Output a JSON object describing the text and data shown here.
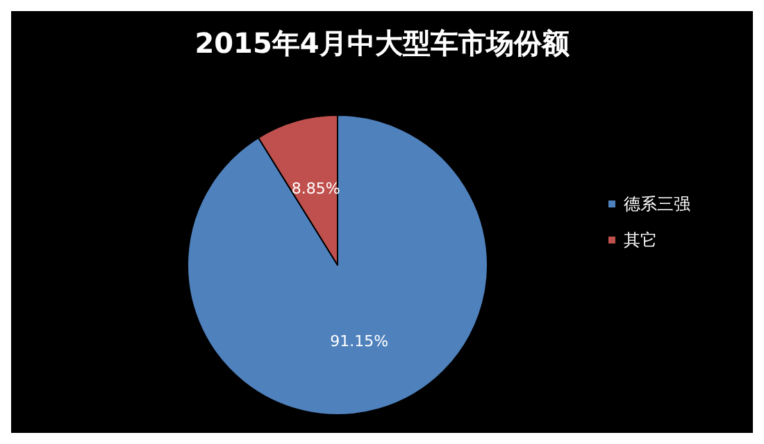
{
  "chart_data": {
    "type": "pie",
    "title": "2015年4月中大型车市场份额",
    "categories": [
      "德系三强",
      "其它"
    ],
    "values": [
      91.15,
      8.85
    ],
    "colors": [
      "#4f81bd",
      "#c0504d"
    ],
    "value_labels": [
      "91.15%",
      "8.85%"
    ],
    "legend": "right"
  }
}
